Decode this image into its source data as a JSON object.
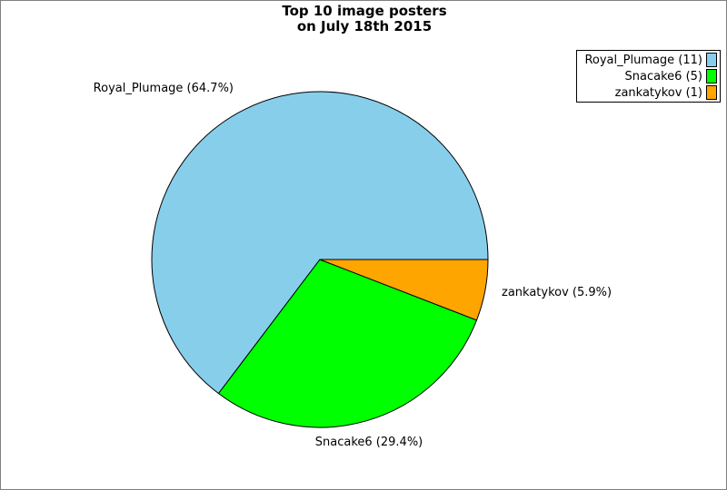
{
  "title": {
    "line1": "Top 10 image posters",
    "line2": "on July 18th 2015"
  },
  "chart_data": {
    "type": "pie",
    "title": "Top 10 image posters on July 18th 2015",
    "categories": [
      "Royal_Plumage",
      "Snacake6",
      "zankatykov"
    ],
    "values": [
      11,
      5,
      1
    ],
    "percentages": [
      64.7,
      29.4,
      5.9
    ],
    "colors": [
      "#87CEEB",
      "#00FF00",
      "#FFA500"
    ],
    "slice_labels": [
      "Royal_Plumage (64.7%)",
      "Snacake6 (29.4%)",
      "zankatykov (5.9%)"
    ],
    "start_angle_deg": 0,
    "direction": "counterclockwise",
    "legend_position": "top-right",
    "stroke_color": "#000000",
    "frame_border_color": "#808080"
  },
  "legend": {
    "items": [
      {
        "label": "Royal_Plumage (11)"
      },
      {
        "label": "Snacake6 (5)"
      },
      {
        "label": "zankatykov (1)"
      }
    ]
  }
}
